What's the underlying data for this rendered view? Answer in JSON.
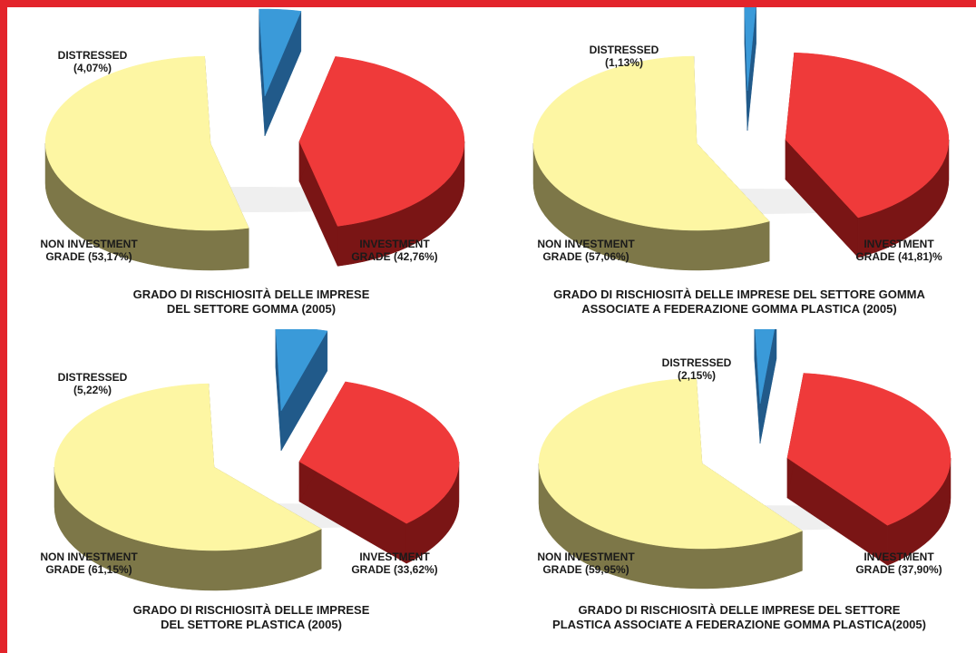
{
  "colors": {
    "frame": "#e3242b",
    "investment_top": "#ef3a3a",
    "investment_side": "#7a1515",
    "non_investment_top": "#fdf6a3",
    "non_investment_side": "#7d7748",
    "distressed_top": "#3a9ad9",
    "distressed_side": "#215a8a"
  },
  "chart_data": [
    {
      "type": "pie",
      "title": "GRADO DI RISCHIOSITÀ DELLE IMPRESE\nDEL SETTORE GOMMA (2005)",
      "slices": [
        {
          "key": "distressed",
          "label": "DISTRESSED\n(4,07%)",
          "value": 4.07
        },
        {
          "key": "investment",
          "label": "INVESTMENT\nGRADE (42,76%)",
          "value": 42.76
        },
        {
          "key": "non_investment",
          "label": "NON INVESTMENT\nGRADE (53,17%)",
          "value": 53.17
        }
      ]
    },
    {
      "type": "pie",
      "title": "GRADO DI RISCHIOSITÀ DELLE IMPRESE DEL SETTORE GOMMA\nASSOCIATE A FEDERAZIONE GOMMA PLASTICA (2005)",
      "slices": [
        {
          "key": "distressed",
          "label": "DISTRESSED\n(1,13%)",
          "value": 1.13
        },
        {
          "key": "investment",
          "label": "INVESTMENT\nGRADE (41,81)%",
          "value": 41.81
        },
        {
          "key": "non_investment",
          "label": "NON INVESTMENT\nGRADE (57,06%)",
          "value": 57.06
        }
      ]
    },
    {
      "type": "pie",
      "title": "GRADO DI RISCHIOSITÀ DELLE IMPRESE\nDEL SETTORE PLASTICA (2005)",
      "slices": [
        {
          "key": "distressed",
          "label": "DISTRESSED\n(5,22%)",
          "value": 5.22
        },
        {
          "key": "investment",
          "label": "INVESTMENT\nGRADE (33,62%)",
          "value": 33.62
        },
        {
          "key": "non_investment",
          "label": "NON INVESTMENT\nGRADE (61,15%)",
          "value": 61.15
        }
      ]
    },
    {
      "type": "pie",
      "title": "GRADO DI RISCHIOSITÀ DELLE IMPRESE DEL SETTORE\nPLASTICA ASSOCIATE A FEDERAZIONE GOMMA PLASTICA(2005)",
      "slices": [
        {
          "key": "distressed",
          "label": "DISTRESSED\n(2,15%)",
          "value": 2.15
        },
        {
          "key": "investment",
          "label": "INVESTMENT\nGRADE (37,90%)",
          "value": 37.9
        },
        {
          "key": "non_investment",
          "label": "NON INVESTMENT\nGRADE (59,95%)",
          "value": 59.95
        }
      ]
    }
  ]
}
